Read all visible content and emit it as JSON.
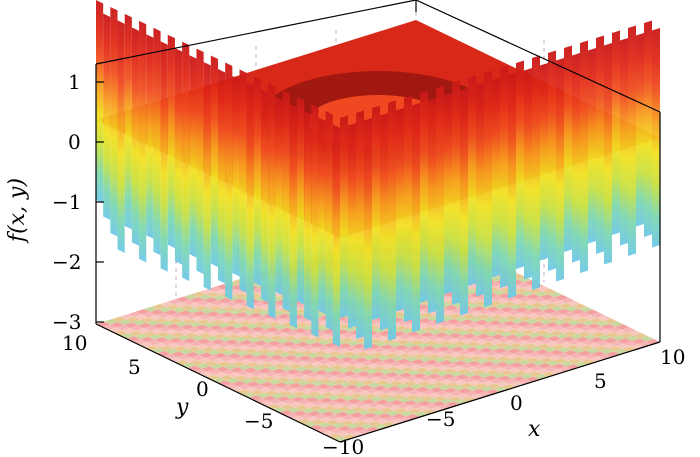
{
  "chart_data": {
    "type": "surface",
    "title": "",
    "xlabel": "x",
    "ylabel": "y",
    "zlabel": "f(x, y)",
    "x_range": [
      -10,
      10
    ],
    "y_range": [
      -10,
      10
    ],
    "z_range": [
      -3,
      1.2
    ],
    "x_ticks": [
      "−10",
      "−5",
      "0",
      "5",
      "10"
    ],
    "y_ticks": [
      "10",
      "5",
      "0",
      "−5"
    ],
    "z_ticks": [
      "1",
      "0",
      "−1",
      "−2",
      "−3"
    ],
    "colormap": [
      "#6ec8e8",
      "#7ed8b0",
      "#c8e040",
      "#f2e020",
      "#f8a020",
      "#f05020",
      "#e02818",
      "#c81818"
    ],
    "surface_top_value": 1.0,
    "surface_bottom_value": -2.5,
    "inner_ring_value": 0.0,
    "floor_contour": true,
    "grid": true
  }
}
